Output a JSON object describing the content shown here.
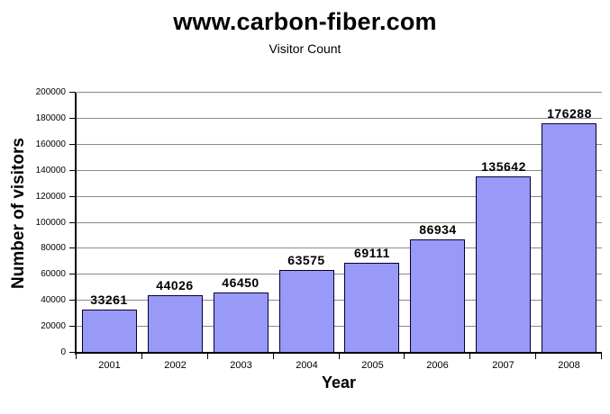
{
  "page": {
    "background": "#ffffff"
  },
  "header": {
    "title": "www.carbon-fiber.com",
    "subtitle": "Visitor Count"
  },
  "chart_data": {
    "type": "bar",
    "title": "www.carbon-fiber.com",
    "subtitle": "Visitor Count",
    "xlabel": "Year",
    "ylabel": "Number of visitors",
    "categories": [
      "2001",
      "2002",
      "2003",
      "2004",
      "2005",
      "2006",
      "2007",
      "2008"
    ],
    "values": [
      33261,
      44026,
      46450,
      63575,
      69111,
      86934,
      135642,
      176288
    ],
    "value_labels_shown": true,
    "ylim": [
      0,
      200000
    ],
    "ytick_step": 20000,
    "ytick_labels": [
      "0",
      "20000",
      "40000",
      "60000",
      "80000",
      "100000",
      "120000",
      "140000",
      "160000",
      "180000",
      "200000"
    ],
    "grid": "horizontal",
    "legend": "none",
    "colors": {
      "bar_fill": "#9999F8",
      "bar_border": "#000033",
      "gridline": "#8a8a8a",
      "axis": "#000000",
      "text": "#000000",
      "background": "#ffffff"
    }
  }
}
